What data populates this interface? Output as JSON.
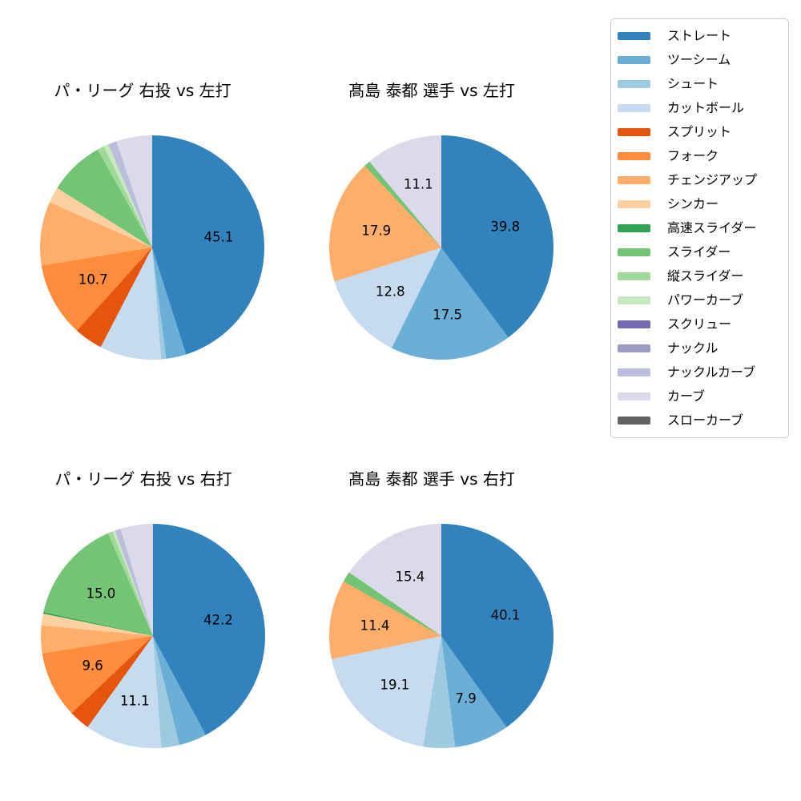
{
  "page": {
    "background_color": "#ffffff"
  },
  "legend": {
    "items": [
      {
        "label": "ストレート",
        "color": "#3182bd"
      },
      {
        "label": "ツーシーム",
        "color": "#6baed6"
      },
      {
        "label": "シュート",
        "color": "#9ecae1"
      },
      {
        "label": "カットボール",
        "color": "#c6dbef"
      },
      {
        "label": "スプリット",
        "color": "#e6550d"
      },
      {
        "label": "フォーク",
        "color": "#fd8d3c"
      },
      {
        "label": "チェンジアップ",
        "color": "#fdae6b"
      },
      {
        "label": "シンカー",
        "color": "#fdd0a2"
      },
      {
        "label": "高速スライダー",
        "color": "#31a354"
      },
      {
        "label": "スライダー",
        "color": "#74c476"
      },
      {
        "label": "縦スライダー",
        "color": "#a1d99b"
      },
      {
        "label": "パワーカーブ",
        "color": "#c7e9c0"
      },
      {
        "label": "スクリュー",
        "color": "#756bb1"
      },
      {
        "label": "ナックル",
        "color": "#9e9ac8"
      },
      {
        "label": "ナックルカーブ",
        "color": "#bcbddc"
      },
      {
        "label": "カーブ",
        "color": "#dadaeb"
      },
      {
        "label": "スローカーブ",
        "color": "#636363"
      }
    ]
  },
  "chart_data": [
    {
      "type": "pie",
      "title": "パ・リーグ 右投 vs 左打",
      "start_angle": "top",
      "direction": "clockwise",
      "unit": "percent",
      "slices": [
        {
          "name": "ストレート",
          "value": 45.1,
          "label": "45.1"
        },
        {
          "name": "ツーシーム",
          "value": 2.9,
          "label": ""
        },
        {
          "name": "シュート",
          "value": 0.7,
          "label": ""
        },
        {
          "name": "カットボール",
          "value": 8.9,
          "label": ""
        },
        {
          "name": "スプリット",
          "value": 4.1,
          "label": ""
        },
        {
          "name": "フォーク",
          "value": 10.7,
          "label": "10.7"
        },
        {
          "name": "チェンジアップ",
          "value": 9.2,
          "label": ""
        },
        {
          "name": "シンカー",
          "value": 2.3,
          "label": ""
        },
        {
          "name": "スライダー",
          "value": 8.0,
          "label": ""
        },
        {
          "name": "縦スライダー",
          "value": 1.0,
          "label": ""
        },
        {
          "name": "パワーカーブ",
          "value": 0.7,
          "label": ""
        },
        {
          "name": "ナックルカーブ",
          "value": 1.2,
          "label": ""
        },
        {
          "name": "カーブ",
          "value": 5.2,
          "label": ""
        }
      ]
    },
    {
      "type": "pie",
      "title": "髙島 泰都 選手 vs 左打",
      "start_angle": "top",
      "direction": "clockwise",
      "unit": "percent",
      "slices": [
        {
          "name": "ストレート",
          "value": 39.8,
          "label": "39.8"
        },
        {
          "name": "ツーシーム",
          "value": 17.5,
          "label": "17.5"
        },
        {
          "name": "カットボール",
          "value": 12.8,
          "label": "12.8"
        },
        {
          "name": "チェンジアップ",
          "value": 17.9,
          "label": "17.9"
        },
        {
          "name": "スライダー",
          "value": 0.9,
          "label": ""
        },
        {
          "name": "カーブ",
          "value": 11.1,
          "label": "11.1"
        }
      ]
    },
    {
      "type": "pie",
      "title": "パ・リーグ 右投 vs 右打",
      "start_angle": "top",
      "direction": "clockwise",
      "unit": "percent",
      "slices": [
        {
          "name": "ストレート",
          "value": 42.2,
          "label": "42.2"
        },
        {
          "name": "ツーシーム",
          "value": 4.0,
          "label": ""
        },
        {
          "name": "シュート",
          "value": 2.6,
          "label": ""
        },
        {
          "name": "カットボール",
          "value": 11.1,
          "label": "11.1"
        },
        {
          "name": "スプリット",
          "value": 3.0,
          "label": ""
        },
        {
          "name": "フォーク",
          "value": 9.6,
          "label": "9.6"
        },
        {
          "name": "チェンジアップ",
          "value": 4.0,
          "label": ""
        },
        {
          "name": "シンカー",
          "value": 1.7,
          "label": ""
        },
        {
          "name": "高速スライダー",
          "value": 0.2,
          "label": ""
        },
        {
          "name": "スライダー",
          "value": 15.0,
          "label": "15.0"
        },
        {
          "name": "縦スライダー",
          "value": 0.7,
          "label": ""
        },
        {
          "name": "パワーカーブ",
          "value": 0.4,
          "label": ""
        },
        {
          "name": "ナックルカーブ",
          "value": 0.8,
          "label": ""
        },
        {
          "name": "カーブ",
          "value": 4.7,
          "label": ""
        }
      ]
    },
    {
      "type": "pie",
      "title": "髙島 泰都 選手 vs 右打",
      "start_angle": "top",
      "direction": "clockwise",
      "unit": "percent",
      "slices": [
        {
          "name": "ストレート",
          "value": 40.1,
          "label": "40.1"
        },
        {
          "name": "ツーシーム",
          "value": 7.9,
          "label": "7.9"
        },
        {
          "name": "シュート",
          "value": 4.6,
          "label": ""
        },
        {
          "name": "カットボール",
          "value": 19.1,
          "label": "19.1"
        },
        {
          "name": "チェンジアップ",
          "value": 11.4,
          "label": "11.4"
        },
        {
          "name": "スライダー",
          "value": 1.5,
          "label": ""
        },
        {
          "name": "カーブ",
          "value": 15.4,
          "label": "15.4"
        }
      ]
    }
  ],
  "style": {
    "label_color": "#000000",
    "pct_distance": 0.6,
    "legend_border_color": "#cccccc"
  }
}
